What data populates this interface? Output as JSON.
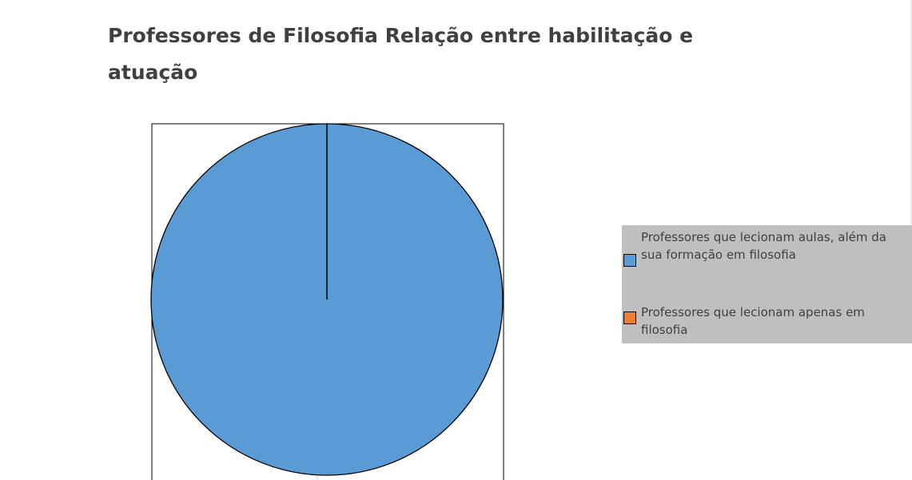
{
  "chart_data": {
    "type": "pie",
    "title": "Professores de Filosofia Relação entre habilitação e atuação",
    "categories": [
      "Professores que lecionam aulas, além da sua formação em filosofia",
      "Professores que lecionam apenas em filosofia"
    ],
    "values": [
      100,
      0
    ],
    "colors": [
      "#5b9bd5",
      "#ed7d31"
    ],
    "legend": "right"
  }
}
